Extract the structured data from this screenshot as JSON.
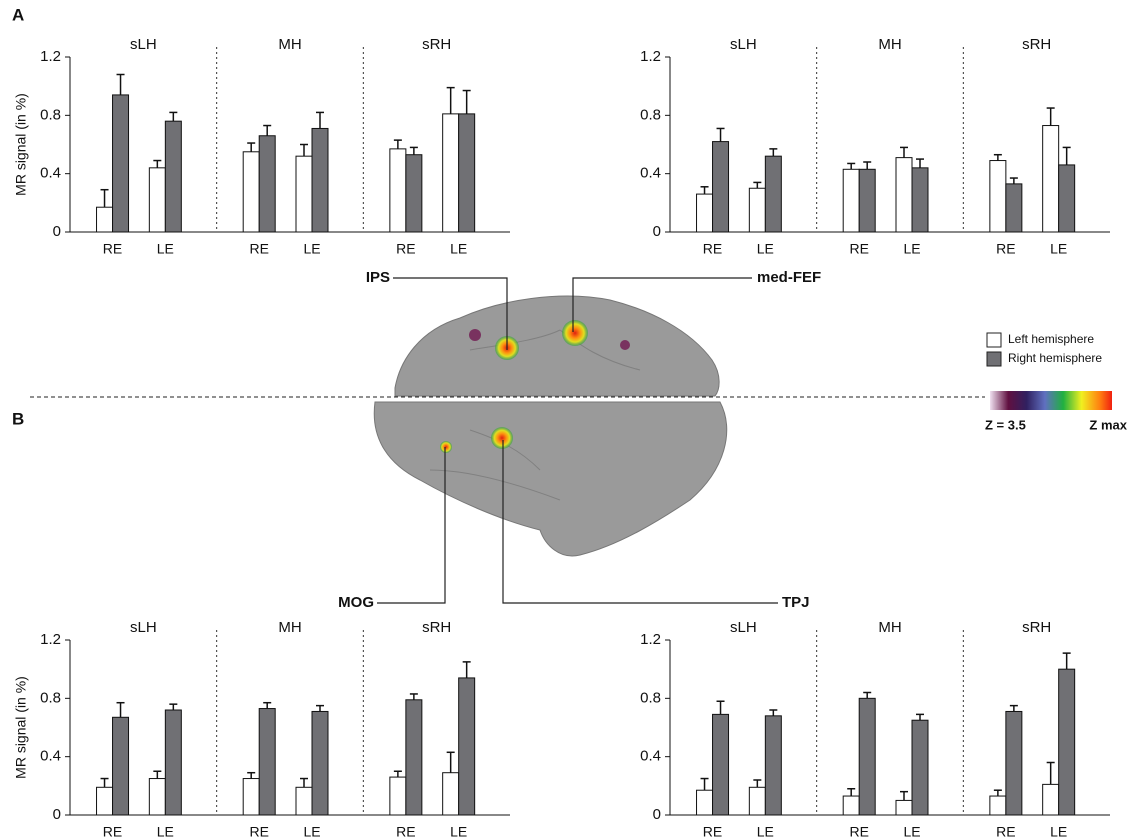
{
  "labels": {
    "panel_a": "A",
    "panel_b": "B",
    "ips": "IPS",
    "med_fef": "med-FEF",
    "mog": "MOG",
    "tpj": "TPJ",
    "z_min": "Z = 3.5",
    "z_max": "Z max"
  },
  "chart_data": [
    {
      "type": "bar",
      "ylabel": "MR signal (in %)",
      "groups": [
        "sLH",
        "MH",
        "sRH"
      ],
      "categories": [
        "RE",
        "LE",
        "RE",
        "LE",
        "RE",
        "LE"
      ],
      "ylim": [
        0,
        1.2
      ],
      "yticks": [
        0,
        0.4,
        0.8,
        1.2
      ],
      "series": [
        {
          "name": "Left hemisphere",
          "color": "#ffffff",
          "values": [
            0.17,
            0.44,
            0.55,
            0.52,
            0.57,
            0.81
          ],
          "errors": [
            0.12,
            0.05,
            0.06,
            0.08,
            0.06,
            0.18
          ]
        },
        {
          "name": "Right hemisphere",
          "color": "#707074",
          "values": [
            0.94,
            0.76,
            0.66,
            0.71,
            0.53,
            0.81
          ],
          "errors": [
            0.14,
            0.06,
            0.07,
            0.11,
            0.05,
            0.16
          ]
        }
      ]
    },
    {
      "type": "bar",
      "groups": [
        "sLH",
        "MH",
        "sRH"
      ],
      "categories": [
        "RE",
        "LE",
        "RE",
        "LE",
        "RE",
        "LE"
      ],
      "ylim": [
        0,
        1.2
      ],
      "yticks": [
        0,
        0.4,
        0.8,
        1.2
      ],
      "series": [
        {
          "name": "Left hemisphere",
          "color": "#ffffff",
          "values": [
            0.26,
            0.3,
            0.43,
            0.51,
            0.49,
            0.73
          ],
          "errors": [
            0.05,
            0.04,
            0.04,
            0.07,
            0.04,
            0.12
          ]
        },
        {
          "name": "Right hemisphere",
          "color": "#707074",
          "values": [
            0.62,
            0.52,
            0.43,
            0.44,
            0.33,
            0.46
          ],
          "errors": [
            0.09,
            0.05,
            0.05,
            0.06,
            0.04,
            0.12
          ]
        }
      ]
    },
    {
      "type": "bar",
      "ylabel": "MR signal (in %)",
      "groups": [
        "sLH",
        "MH",
        "sRH"
      ],
      "categories": [
        "RE",
        "LE",
        "RE",
        "LE",
        "RE",
        "LE"
      ],
      "ylim": [
        0,
        1.2
      ],
      "yticks": [
        0,
        0.4,
        0.8,
        1.2
      ],
      "series": [
        {
          "name": "Left hemisphere",
          "color": "#ffffff",
          "values": [
            0.19,
            0.25,
            0.25,
            0.19,
            0.26,
            0.29
          ],
          "errors": [
            0.06,
            0.05,
            0.04,
            0.06,
            0.04,
            0.14
          ]
        },
        {
          "name": "Right hemisphere",
          "color": "#707074",
          "values": [
            0.67,
            0.72,
            0.73,
            0.71,
            0.79,
            0.94
          ],
          "errors": [
            0.1,
            0.04,
            0.04,
            0.04,
            0.04,
            0.11
          ]
        }
      ]
    },
    {
      "type": "bar",
      "groups": [
        "sLH",
        "MH",
        "sRH"
      ],
      "categories": [
        "RE",
        "LE",
        "RE",
        "LE",
        "RE",
        "LE"
      ],
      "ylim": [
        0,
        1.2
      ],
      "yticks": [
        0,
        0.4,
        0.8,
        1.2
      ],
      "series": [
        {
          "name": "Left hemisphere",
          "color": "#ffffff",
          "values": [
            0.17,
            0.19,
            0.13,
            0.1,
            0.13,
            0.21
          ],
          "errors": [
            0.08,
            0.05,
            0.05,
            0.06,
            0.04,
            0.15
          ]
        },
        {
          "name": "Right hemisphere",
          "color": "#707074",
          "values": [
            0.69,
            0.68,
            0.8,
            0.65,
            0.71,
            1.0
          ],
          "errors": [
            0.09,
            0.04,
            0.04,
            0.04,
            0.04,
            0.11
          ]
        }
      ]
    }
  ]
}
